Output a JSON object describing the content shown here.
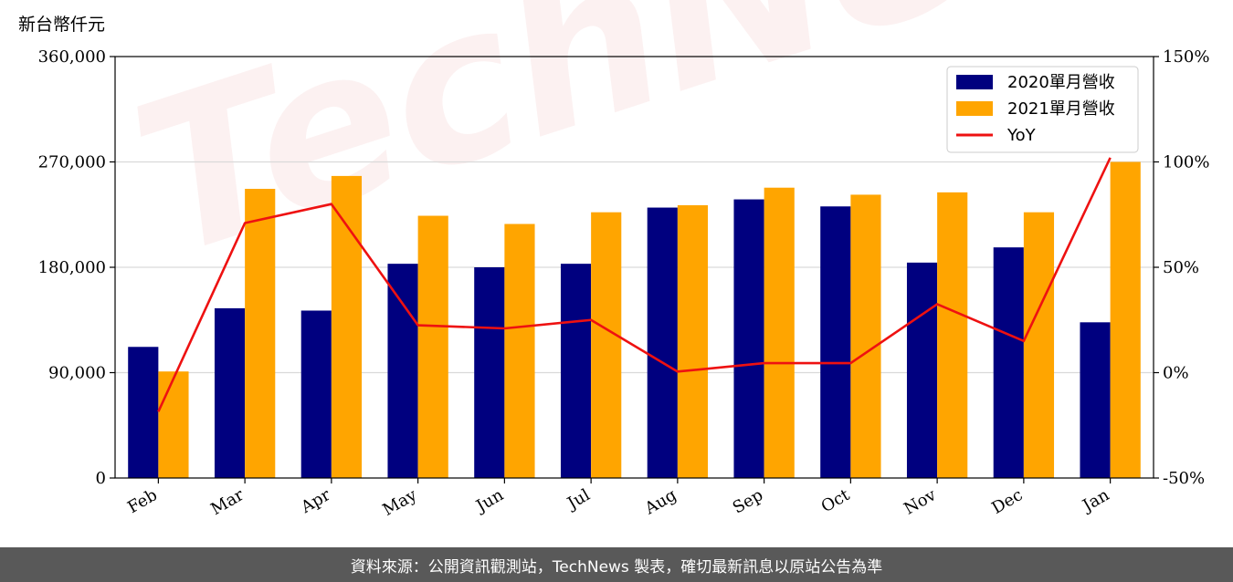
{
  "unit_label": "新台幣仟元",
  "footer": "資料來源：公開資訊觀測站，TechNews 製表，確切最新訊息以原站公告為準",
  "watermark": "TechNews",
  "colors": {
    "bar_2020": "#00007F",
    "bar_2021": "#FFA500",
    "yoy_line": "#EE1111",
    "grid": "#d9d9d9",
    "footer_bg": "#595959"
  },
  "chart_data": {
    "type": "bar",
    "categories": [
      "Feb",
      "Mar",
      "Apr",
      "May",
      "Jun",
      "Jul",
      "Aug",
      "Sep",
      "Oct",
      "Nov",
      "Dec",
      "Jan"
    ],
    "series": [
      {
        "name": "2020單月營收",
        "axis": "left",
        "values": [
          112000,
          145000,
          143000,
          183000,
          180000,
          183000,
          231000,
          238000,
          232000,
          184000,
          197000,
          133000
        ]
      },
      {
        "name": "2021單月營收",
        "axis": "left",
        "values": [
          91000,
          247000,
          258000,
          224000,
          217000,
          227000,
          233000,
          248000,
          242000,
          244000,
          227000,
          270000
        ]
      },
      {
        "name": "YoY",
        "axis": "right",
        "type": "line",
        "values": [
          -18.5,
          71,
          80,
          22.5,
          21,
          25,
          0.5,
          4.5,
          4.5,
          32.5,
          15,
          102
        ]
      }
    ],
    "y_left": {
      "range": [
        0,
        360000
      ],
      "ticks": [
        "0",
        "90,000",
        "180,000",
        "270,000",
        "360,000"
      ],
      "tick_values": [
        0,
        90000,
        180000,
        270000,
        360000
      ]
    },
    "y_right": {
      "range": [
        -50,
        150
      ],
      "ticks": [
        "-50%",
        "0%",
        "50%",
        "100%",
        "150%"
      ],
      "tick_values": [
        -50,
        0,
        50,
        100,
        150
      ]
    },
    "grid": "horizontal",
    "legend_position": "top-right"
  }
}
